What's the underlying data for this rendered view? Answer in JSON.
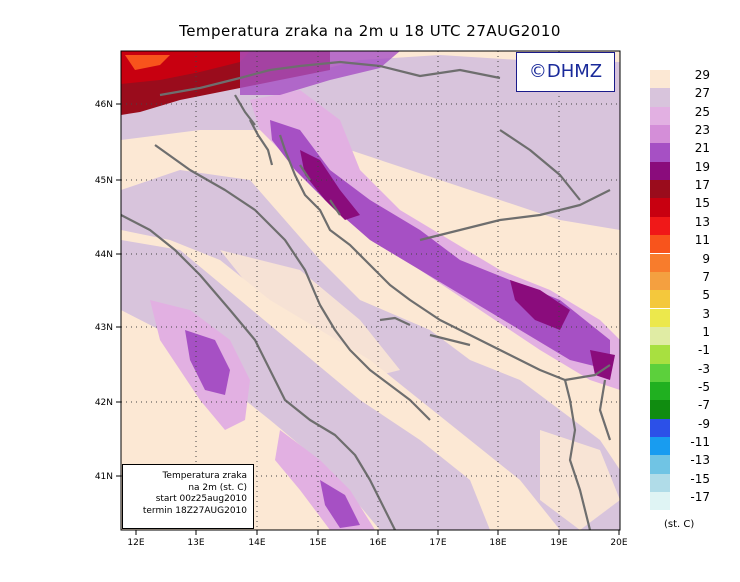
{
  "title": "Temperatura zraka na 2m u 18 UTC 27AUG2010",
  "logo_text": "©DHMZ",
  "info_box": {
    "line1": "Temperatura zraka",
    "line2": "na 2m (st. C)",
    "line3": "start 00z25aug2010",
    "line4": "termin 18Z27AUG2010"
  },
  "x_ticks": [
    "12E",
    "13E",
    "14E",
    "15E",
    "16E",
    "17E",
    "18E",
    "19E",
    "20E"
  ],
  "y_ticks": [
    "46N",
    "45N",
    "44N",
    "43N",
    "42N",
    "41N"
  ],
  "legend": {
    "unit": "(st. C)",
    "labels": [
      "29",
      "27",
      "25",
      "23",
      "21",
      "19",
      "17",
      "15",
      "13",
      "11",
      "9",
      "7",
      "5",
      "3",
      "1",
      "-1",
      "-3",
      "-5",
      "-7",
      "-9",
      "-11",
      "-13",
      "-15",
      "-17"
    ],
    "colors": [
      "#fce8d4",
      "#d8c4dc",
      "#e2b0e2",
      "#d48ed8",
      "#a650c4",
      "#8a0c7c",
      "#9a0c1c",
      "#c80010",
      "#f01818",
      "#f8541c",
      "#f87c2c",
      "#f4a040",
      "#f4c83c",
      "#ece84c",
      "#e0eca4",
      "#a8e040",
      "#5cd03c",
      "#20b020",
      "#108c10",
      "#2c50e8",
      "#189cf0",
      "#70c4e4",
      "#b0dce8",
      "#dff4f4"
    ]
  },
  "map": {
    "lon_range": [
      "11.75E",
      "20.0E"
    ],
    "lat_range": [
      "40.2N",
      "46.75N"
    ],
    "grid": "dotted every 1 degree"
  }
}
